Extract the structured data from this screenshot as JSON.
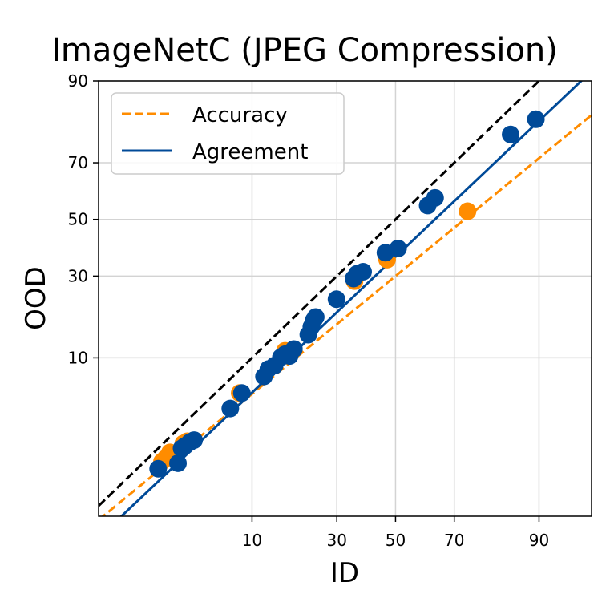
{
  "chart_data": {
    "type": "scatter",
    "title": "ImageNetC (JPEG Compression)",
    "xlabel": "ID",
    "ylabel": "OOD",
    "xscale": "probit",
    "yscale": "probit",
    "xlim": [
      0.4,
      96
    ],
    "ylim": [
      0.3,
      90
    ],
    "xticks": [
      10,
      30,
      50,
      70,
      90
    ],
    "yticks": [
      10,
      30,
      50,
      70,
      90
    ],
    "grid": true,
    "legend": {
      "placement": "top-left",
      "entries": [
        {
          "label": "Accuracy",
          "style": "dashed",
          "color": "#ff8c00"
        },
        {
          "label": "Agreement",
          "style": "solid",
          "color": "#004a98"
        }
      ]
    },
    "colors": {
      "accuracy": "#ff8c00",
      "agreement": "#004a98",
      "reference": "#000000",
      "grid": "#d3d3d3"
    },
    "lines": [
      {
        "name": "",
        "kind": "reference",
        "color": "#000000",
        "style": "dashed",
        "from": [
          0.4,
          0.4
        ],
        "to": [
          96,
          96
        ]
      },
      {
        "name": "Accuracy",
        "kind": "fit",
        "color": "#ff8c00",
        "style": "dashed",
        "from": [
          0.4,
          0.27
        ],
        "to": [
          96,
          83.3
        ]
      },
      {
        "name": "Agreement",
        "kind": "fit",
        "color": "#004a98",
        "style": "solid",
        "from": [
          0.4,
          0.16
        ],
        "to": [
          96,
          91.5
        ]
      }
    ],
    "series": [
      {
        "name": "Accuracy",
        "color": "#ff8c00",
        "points": [
          [
            1.85,
            1.25
          ],
          [
            2.0,
            1.35
          ],
          [
            2.2,
            1.55
          ],
          [
            2.9,
            1.9
          ],
          [
            3.15,
            2.0
          ],
          [
            8.2,
            5.4
          ],
          [
            16.2,
            11.2
          ],
          [
            35.7,
            28.4
          ],
          [
            47.0,
            35.5
          ],
          [
            74.0,
            53.0
          ]
        ]
      },
      {
        "name": "Agreement",
        "color": "#004a98",
        "points": [
          [
            1.7,
            1.05
          ],
          [
            2.6,
            1.2
          ],
          [
            2.8,
            1.7
          ],
          [
            3.0,
            1.8
          ],
          [
            3.3,
            1.95
          ],
          [
            3.6,
            2.05
          ],
          [
            7.0,
            4.0
          ],
          [
            8.5,
            5.4
          ],
          [
            12.0,
            7.3
          ],
          [
            12.8,
            8.3
          ],
          [
            14.0,
            8.8
          ],
          [
            15.3,
            10.1
          ],
          [
            16.2,
            10.6
          ],
          [
            17.2,
            10.3
          ],
          [
            18.2,
            11.5
          ],
          [
            21.8,
            14.3
          ],
          [
            22.6,
            16.0
          ],
          [
            23.3,
            17.6
          ],
          [
            23.8,
            18.3
          ],
          [
            29.9,
            23.0
          ],
          [
            35.4,
            29.2
          ],
          [
            36.5,
            30.7
          ],
          [
            38.6,
            31.4
          ],
          [
            46.4,
            37.9
          ],
          [
            50.9,
            39.4
          ],
          [
            61.3,
            55.1
          ],
          [
            63.8,
            57.9
          ],
          [
            84.8,
            78.4
          ],
          [
            89.5,
            82.3
          ]
        ]
      }
    ]
  }
}
